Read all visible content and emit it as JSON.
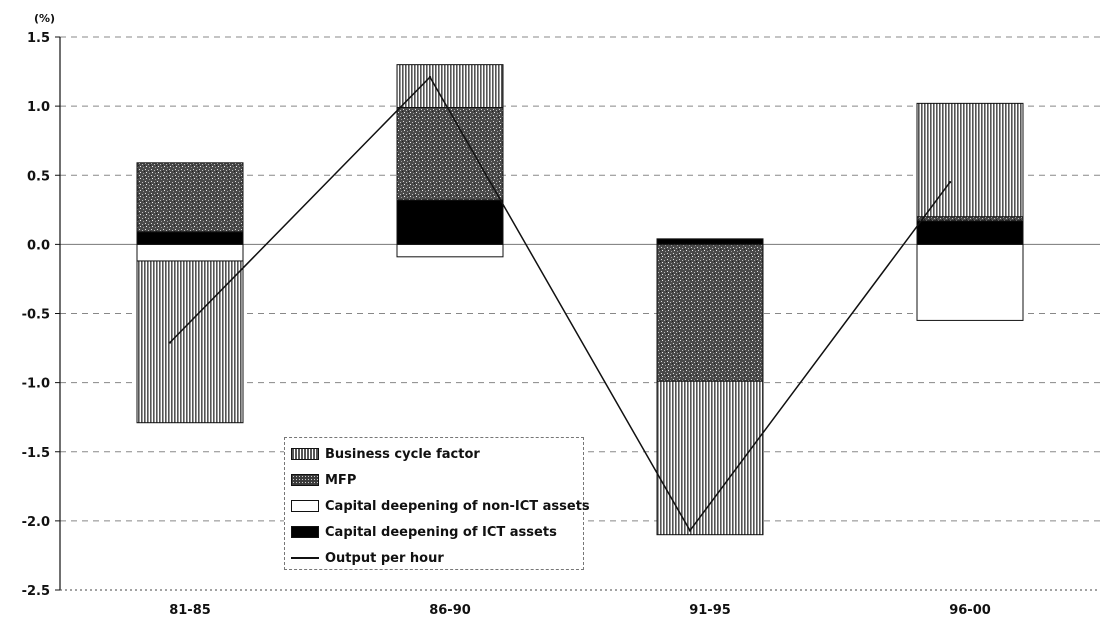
{
  "chart_data": {
    "type": "bar",
    "stacked": true,
    "unit_label": "(%)",
    "categories": [
      "81-85",
      "86-90",
      "91-95",
      "96-00"
    ],
    "ylim": [
      -2.5,
      1.5
    ],
    "yticks": [
      1.5,
      1.0,
      0.5,
      0.0,
      -0.5,
      -1.0,
      -1.5,
      -2.0,
      -2.5
    ],
    "ytick_labels": [
      "1.5",
      "1.0",
      "0.5",
      "0.0",
      "-0.5",
      "-1.0",
      "-1.5",
      "-2.0",
      "-2.5"
    ],
    "grid": true,
    "legend_position": "bottom-left, inside plot",
    "series": [
      {
        "name": "Capital deepening of non-ICT assets",
        "key": "noninfo",
        "values": [
          -0.12,
          -0.09,
          0.0,
          -0.55
        ]
      },
      {
        "name": "Capital deepening of ICT assets",
        "key": "ict",
        "values": [
          0.09,
          0.32,
          0.04,
          0.17
        ]
      },
      {
        "name": "MFP",
        "key": "mfp",
        "values": [
          0.5,
          0.67,
          -0.99,
          0.03
        ]
      },
      {
        "name": "Business cycle factor",
        "key": "cycle",
        "values": [
          -1.17,
          0.31,
          -1.11,
          0.82
        ]
      }
    ],
    "line_series": {
      "name": "Output per hour",
      "values": [
        -0.71,
        1.21,
        -2.07,
        0.45
      ]
    },
    "colors": {
      "cycle": "#9a9a9a",
      "mfp": "#3a3a3a",
      "noninfo": "#ffffff",
      "ict": "#000000",
      "line": "#111111"
    }
  },
  "legend": {
    "items": [
      {
        "label": "Business cycle factor",
        "key": "cycle"
      },
      {
        "label": "MFP",
        "key": "mfp"
      },
      {
        "label": "Capital deepening of non-ICT assets",
        "key": "noninfo"
      },
      {
        "label": "Capital deepening of ICT assets",
        "key": "ict"
      },
      {
        "label": "Output per hour",
        "key": "line"
      }
    ]
  }
}
